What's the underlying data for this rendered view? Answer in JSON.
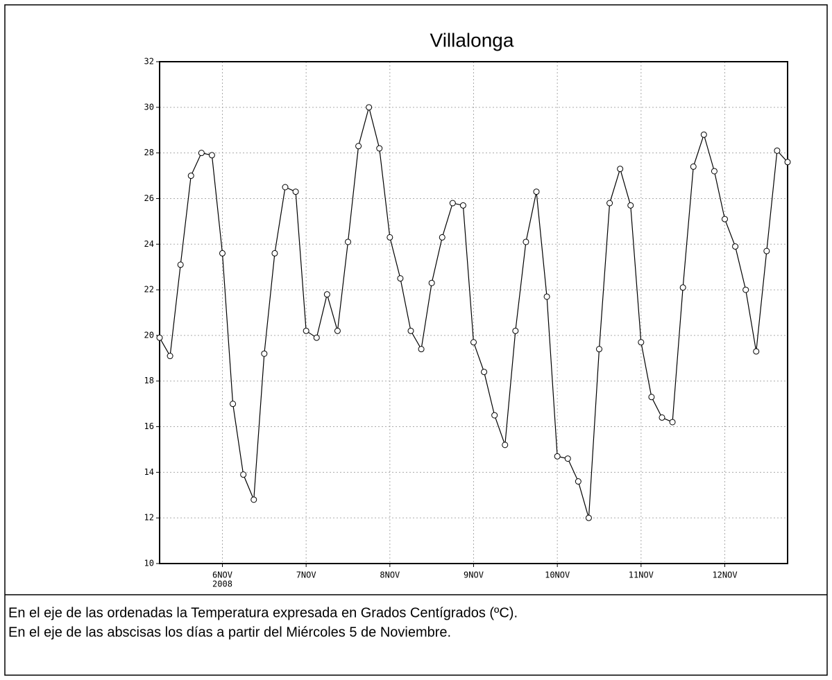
{
  "chart_data": {
    "type": "line",
    "title": "Villalonga",
    "categories": [
      null,
      null,
      null,
      null,
      null,
      null,
      "6NOV",
      null,
      null,
      null,
      null,
      null,
      null,
      null,
      "7NOV",
      null,
      null,
      null,
      null,
      null,
      null,
      null,
      "8NOV",
      null,
      null,
      null,
      null,
      null,
      null,
      null,
      "9NOV",
      null,
      null,
      null,
      null,
      null,
      null,
      null,
      "10NOV",
      null,
      null,
      null,
      null,
      null,
      null,
      null,
      "11NOV",
      null,
      null,
      null,
      null,
      null,
      null,
      null,
      "12NOV",
      null,
      null,
      null,
      null,
      null,
      null
    ],
    "year_label": "2008",
    "series": [
      {
        "color": "#000000",
        "values": [
          19.9,
          19.1,
          23.1,
          27,
          28,
          27.9,
          23.6,
          17,
          13.9,
          12.8,
          19.2,
          23.6,
          26.5,
          26.3,
          20.2,
          19.9,
          21.8,
          20.2,
          24.1,
          28.3,
          30,
          28.2,
          24.3,
          22.5,
          20.2,
          19.4,
          22.3,
          24.3,
          25.8,
          25.7,
          19.7,
          18.4,
          16.5,
          15.2,
          20.2,
          24.1,
          26.3,
          21.7,
          14.7,
          14.6,
          13.6,
          12,
          19.4,
          25.8,
          27.3,
          25.7,
          19.7,
          17.3,
          16.4,
          16.2,
          22.1,
          27.4,
          28.8,
          27.2,
          25.1,
          23.9,
          22,
          19.3,
          23.7,
          28.1,
          27.6
        ]
      }
    ],
    "ylim": [
      10,
      32
    ],
    "yticks": [
      10,
      12,
      14,
      16,
      18,
      20,
      22,
      24,
      26,
      28,
      30,
      32
    ],
    "grid": true
  },
  "caption": [
    "En el eje de las ordenadas la Temperatura expresada en Grados Centígrados (ºC).",
    "En el eje de las abscisas los días a partir del Miércoles 5 de Noviembre."
  ]
}
